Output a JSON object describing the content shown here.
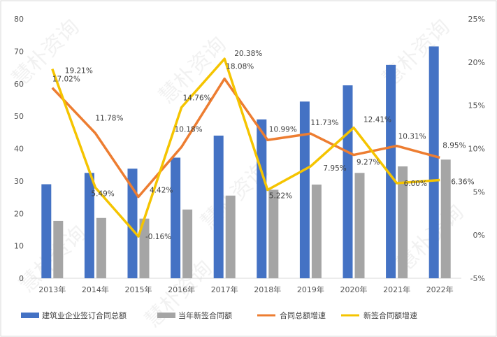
{
  "chart_data": {
    "type": "bar+line",
    "categories": [
      "2013年",
      "2014年",
      "2015年",
      "2016年",
      "2017年",
      "2018年",
      "2019年",
      "2020年",
      "2021年",
      "2022年"
    ],
    "bar_series": [
      {
        "name": "建筑业企业签订合同总额",
        "color": "#4472c4",
        "values": [
          29.0,
          32.5,
          33.8,
          37.2,
          44.0,
          49.0,
          54.5,
          59.5,
          65.8,
          71.5
        ]
      },
      {
        "name": "当年新签合同额",
        "color": "#a5a5a5",
        "values": [
          17.7,
          18.6,
          18.4,
          21.2,
          25.5,
          27.3,
          28.9,
          32.5,
          34.5,
          36.6
        ]
      }
    ],
    "line_series": [
      {
        "name": "合同总额增速",
        "color": "#ed7d31",
        "values": [
          17.02,
          11.78,
          4.42,
          10.18,
          18.08,
          10.99,
          11.73,
          9.27,
          10.31,
          8.95
        ],
        "labels": [
          "17.02%",
          "11.78%",
          "4.42%",
          "10.18%",
          "18.08%",
          "10.99%",
          "11.73%",
          "9.27%",
          "10.31%",
          "8.95%"
        ]
      },
      {
        "name": "新签合同额增速",
        "color": "#f5c400",
        "values": [
          19.21,
          5.49,
          -0.16,
          14.76,
          20.38,
          5.22,
          7.95,
          12.41,
          6.0,
          6.36
        ],
        "labels": [
          "19.21%",
          "5.49%",
          "-0.16%",
          "14.76%",
          "20.38%",
          "5.22%",
          "7.95%",
          "12.41%",
          "6.00%",
          "6.36%"
        ]
      }
    ],
    "y_left": {
      "min": 0,
      "max": 80,
      "ticks": [
        "0",
        "10",
        "20",
        "30",
        "40",
        "50",
        "60",
        "70",
        "80"
      ]
    },
    "y_right": {
      "min": -5,
      "max": 25,
      "ticks": [
        "-5%",
        "0%",
        "5%",
        "10%",
        "15%",
        "20%",
        "25%"
      ]
    },
    "negative_label_color": "#c00000",
    "legend_position": "bottom",
    "grid": false
  },
  "watermark": {
    "text": "慧朴资询"
  }
}
